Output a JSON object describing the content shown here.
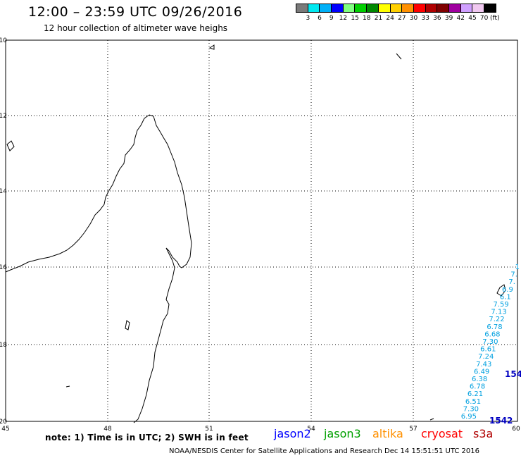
{
  "title": "12:00 – 23:59 UTC 09/26/2016",
  "subtitle": "12 hour collection of altimeter wave heighs",
  "colorbar": {
    "colors": [
      "#7a7a7a",
      "#00e8f0",
      "#00b0f8",
      "#0000ff",
      "#80ff80",
      "#00d000",
      "#008800",
      "#ffff00",
      "#ffd000",
      "#ff9000",
      "#ff0000",
      "#b00000",
      "#800000",
      "#a000a0",
      "#d0a0ff",
      "#f0c8f0",
      "#000000"
    ],
    "labels": [
      "3",
      "6",
      "9",
      "12",
      "15",
      "18",
      "21",
      "24",
      "27",
      "30",
      "33",
      "36",
      "39",
      "42",
      "45",
      "70"
    ],
    "unit": "(ft)"
  },
  "axes": {
    "lon_ticks": [
      "45",
      "48",
      "51",
      "54",
      "57",
      "60"
    ],
    "lat_ticks": [
      "-10",
      "-12",
      "-14",
      "-16",
      "-18",
      "-20"
    ]
  },
  "swh_track": {
    "color": "#00a0e0",
    "values": [
      "1",
      "7.",
      "7.",
      "6.9",
      "6.1",
      "7.59",
      "7.13",
      "7.22",
      "6.78",
      "6.68",
      "7.30",
      "6.61",
      "7.24",
      "7.43",
      "6.49",
      "6.38",
      "6.78",
      "6.21",
      "6.51",
      "7.30",
      "6.95"
    ],
    "time_labels": [
      "154",
      "1542"
    ],
    "time_color": "#0000c0"
  },
  "note": "note:  1) Time is in UTC;  2) SWH is in feet",
  "satellites": [
    {
      "name": "jason2",
      "color": "#0000ff"
    },
    {
      "name": "jason3",
      "color": "#00a000"
    },
    {
      "name": "altika",
      "color": "#ff9000"
    },
    {
      "name": "cryosat",
      "color": "#ff0000"
    },
    {
      "name": "s3a",
      "color": "#b00000"
    }
  ],
  "footer": "NOAA/NESDIS Center for Satellite Applications and Research     Dec 14 15:51:51 UTC 2016"
}
